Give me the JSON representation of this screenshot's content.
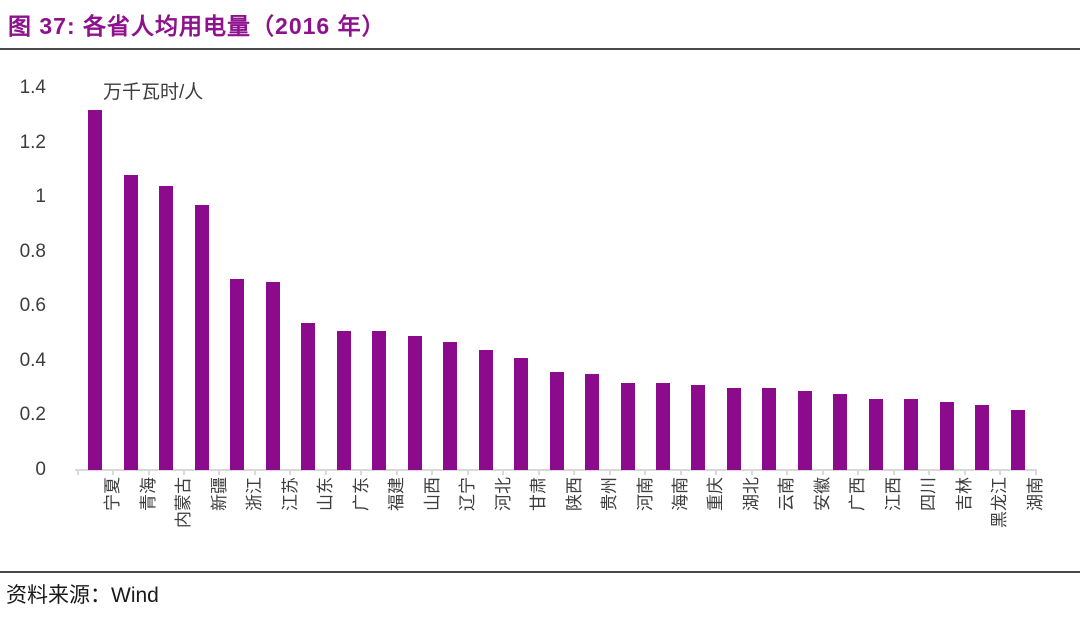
{
  "figure": {
    "title": "图 37:  各省人均用电量（2016 年）",
    "source_prefix": "资料来源：",
    "source_value": "Wind"
  },
  "chart_data": {
    "type": "bar",
    "title": "各省人均用电量（2016 年）",
    "unit_label": "万千瓦时/人",
    "ylabel": "万千瓦时/人",
    "xlabel": "",
    "categories": [
      "宁夏",
      "青海",
      "内蒙古",
      "新疆",
      "浙江",
      "江苏",
      "山东",
      "广东",
      "福建",
      "山西",
      "辽宁",
      "河北",
      "甘肃",
      "陕西",
      "贵州",
      "河南",
      "海南",
      "重庆",
      "湖北",
      "云南",
      "安徽",
      "广西",
      "江西",
      "四川",
      "吉林",
      "黑龙江",
      "湖南"
    ],
    "values": [
      1.32,
      1.08,
      1.04,
      0.97,
      0.7,
      0.69,
      0.54,
      0.51,
      0.51,
      0.49,
      0.47,
      0.44,
      0.41,
      0.36,
      0.35,
      0.32,
      0.32,
      0.31,
      0.3,
      0.3,
      0.29,
      0.28,
      0.26,
      0.26,
      0.25,
      0.24,
      0.22
    ],
    "ylim": [
      0,
      1.4
    ],
    "yticks": [
      0,
      0.2,
      0.4,
      0.6,
      0.8,
      1,
      1.2,
      1.4
    ],
    "ytick_labels": [
      "0",
      "0.2",
      "0.4",
      "0.6",
      "0.8",
      "1",
      "1.2",
      "1.4"
    ],
    "grid": false,
    "legend": false,
    "x_labels_rotated_degrees": -90
  },
  "colors": {
    "bar": "#8C0A8C",
    "title": "#8E118E",
    "rule": "#4A4A4A",
    "axis_line": "#D9D9D9",
    "tick_text": "#3D3D3D",
    "source_text": "#1A1A1A",
    "background": "#FFFFFF"
  }
}
